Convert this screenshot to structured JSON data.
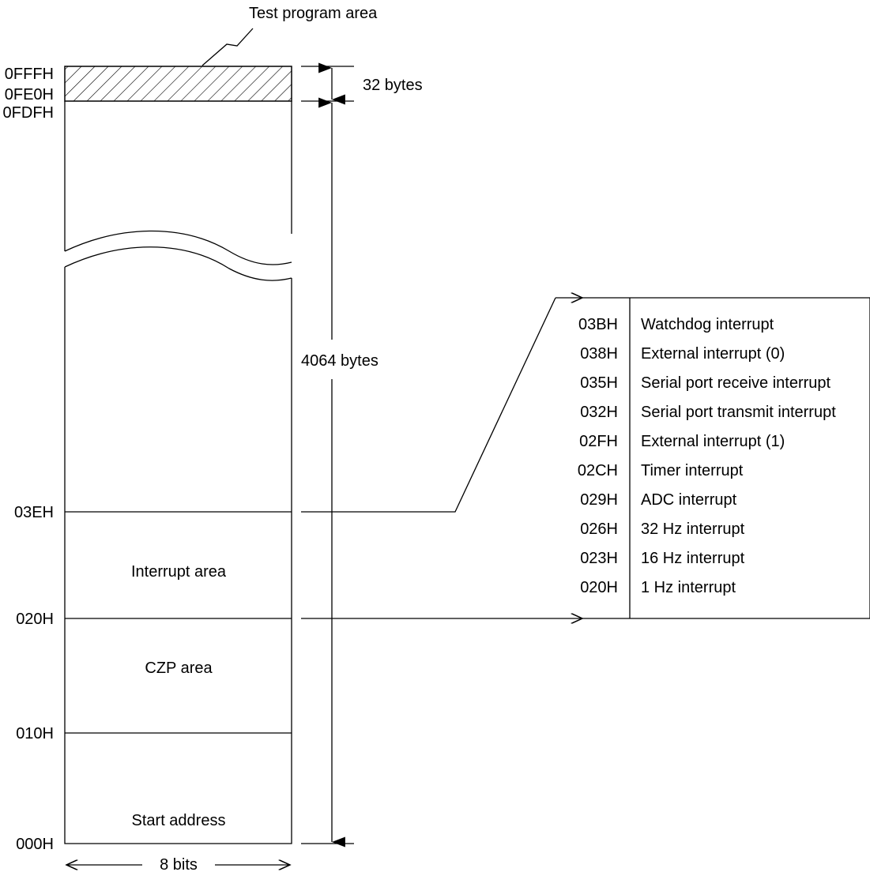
{
  "title_callout": "Test program area",
  "addresses": {
    "top": "0FFFH",
    "test_start": "0FE0H",
    "below_test": "0FDFH",
    "interrupt_top": "03EH",
    "interrupt_start": "020H",
    "czp_end": "010H",
    "bottom": "000H"
  },
  "regions": {
    "interrupt": "Interrupt area",
    "czp": "CZP area",
    "start": "Start address"
  },
  "dimensions": {
    "test_area_size": "32 bytes",
    "main_size": "4064 bytes",
    "width": "8 bits"
  },
  "vector_table": [
    {
      "address": "03BH",
      "label": "Watchdog interrupt"
    },
    {
      "address": "038H",
      "label": "External interrupt (0)"
    },
    {
      "address": "035H",
      "label": "Serial port receive interrupt"
    },
    {
      "address": "032H",
      "label": "Serial port transmit interrupt"
    },
    {
      "address": "02FH",
      "label": "External interrupt (1)"
    },
    {
      "address": "02CH",
      "label": "Timer interrupt"
    },
    {
      "address": "029H",
      "label": "ADC interrupt"
    },
    {
      "address": "026H",
      "label": "32 Hz interrupt"
    },
    {
      "address": "023H",
      "label": "16 Hz interrupt"
    },
    {
      "address": "020H",
      "label": "1 Hz interrupt"
    }
  ]
}
